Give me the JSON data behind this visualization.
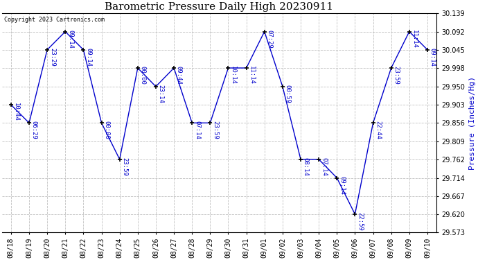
{
  "title": "Barometric Pressure Daily High 20230911",
  "ylabel": "Pressure (Inches/Hg)",
  "copyright": "Copyright 2023 Cartronics.com",
  "line_color": "#0000cc",
  "marker_color": "#000000",
  "background_color": "#ffffff",
  "grid_color": "#c0c0c0",
  "ylim_min": 29.573,
  "ylim_max": 30.139,
  "ytick_vals": [
    29.573,
    29.62,
    29.667,
    29.714,
    29.762,
    29.809,
    29.856,
    29.903,
    29.95,
    29.998,
    30.045,
    30.092,
    30.139
  ],
  "dates": [
    "08/18",
    "08/19",
    "08/20",
    "08/21",
    "08/22",
    "08/23",
    "08/24",
    "08/25",
    "08/26",
    "08/27",
    "08/28",
    "08/29",
    "08/30",
    "08/31",
    "09/01",
    "09/02",
    "09/03",
    "09/04",
    "09/05",
    "09/06",
    "09/07",
    "09/08",
    "09/09",
    "09/10"
  ],
  "values": [
    29.903,
    29.856,
    30.045,
    30.092,
    30.045,
    29.856,
    29.762,
    29.998,
    29.95,
    29.998,
    29.856,
    29.856,
    29.998,
    29.998,
    30.092,
    29.95,
    29.762,
    29.762,
    29.714,
    29.62,
    29.856,
    29.998,
    30.092,
    30.045
  ],
  "time_labels": [
    "10:44",
    "06:29",
    "23:29",
    "09:14",
    "09:14",
    "00:00",
    "23:59",
    "00:00",
    "23:14",
    "09:44",
    "07:14",
    "23:59",
    "10:14",
    "11:14",
    "07:29",
    "00:59",
    "08:14",
    "07:14",
    "09:14",
    "22:59",
    "22:44",
    "23:59",
    "11:14",
    "09:14"
  ],
  "label_fontsize": 6.5,
  "title_fontsize": 11,
  "tick_fontsize": 7,
  "ylabel_fontsize": 8
}
